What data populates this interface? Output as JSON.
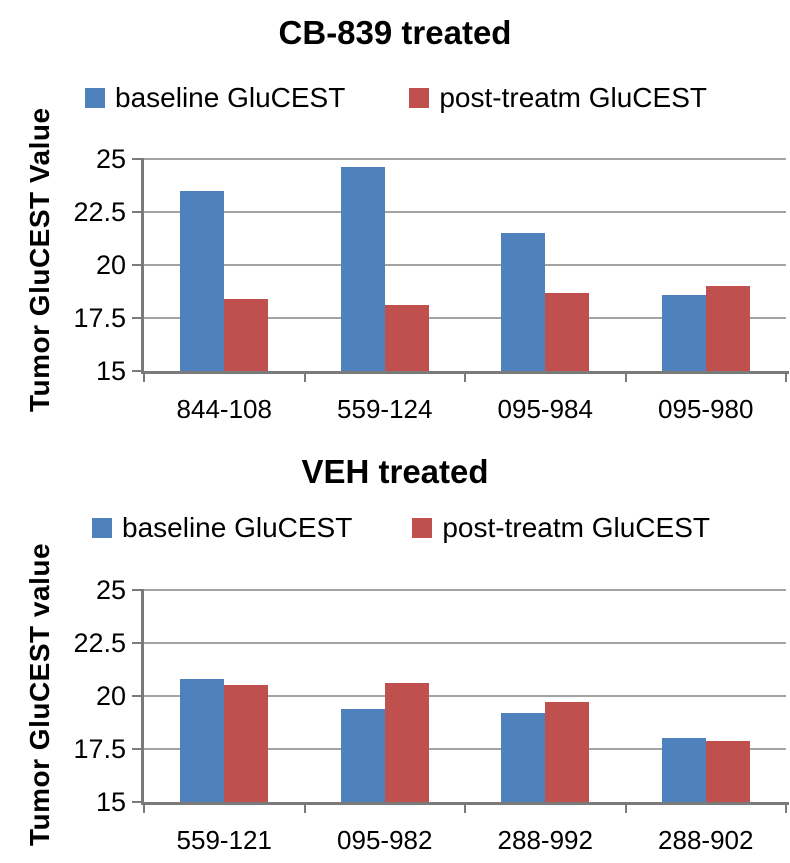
{
  "colors": {
    "baseline_series": "#4F81BD",
    "post_treatment_series": "#C0504D",
    "gridline": "#A3A3A3",
    "axis": "#7A7A7A",
    "text": "#000000",
    "background": "#FFFFFF"
  },
  "chart_data": [
    {
      "type": "bar",
      "title": "CB-839 treated",
      "xlabel": "",
      "ylabel": "Tumor GluCEST Value",
      "categories": [
        "844-108",
        "559-124",
        "095-984",
        "095-980"
      ],
      "series": [
        {
          "name": "baseline GluCEST",
          "color": "#4F81BD",
          "values": [
            23.5,
            24.6,
            21.5,
            18.6
          ]
        },
        {
          "name": "post-treatm GluCEST",
          "color": "#C0504D",
          "values": [
            18.4,
            18.1,
            18.7,
            19.0
          ]
        }
      ],
      "ylim": [
        15,
        25
      ],
      "yticks": [
        15,
        17.5,
        20,
        22.5,
        25
      ],
      "grid": true,
      "legend_position": "top"
    },
    {
      "type": "bar",
      "title": "VEH treated",
      "xlabel": "",
      "ylabel": "Tumor GluCEST value",
      "categories": [
        "559-121",
        "095-982",
        "288-992",
        "288-902"
      ],
      "series": [
        {
          "name": "baseline GluCEST",
          "color": "#4F81BD",
          "values": [
            20.8,
            19.4,
            19.2,
            18.0
          ]
        },
        {
          "name": "post-treatm GluCEST",
          "color": "#C0504D",
          "values": [
            20.5,
            20.6,
            19.7,
            17.9
          ]
        }
      ],
      "ylim": [
        15,
        25
      ],
      "yticks": [
        15,
        17.5,
        20,
        22.5,
        25
      ],
      "grid": true,
      "legend_position": "top"
    }
  ]
}
